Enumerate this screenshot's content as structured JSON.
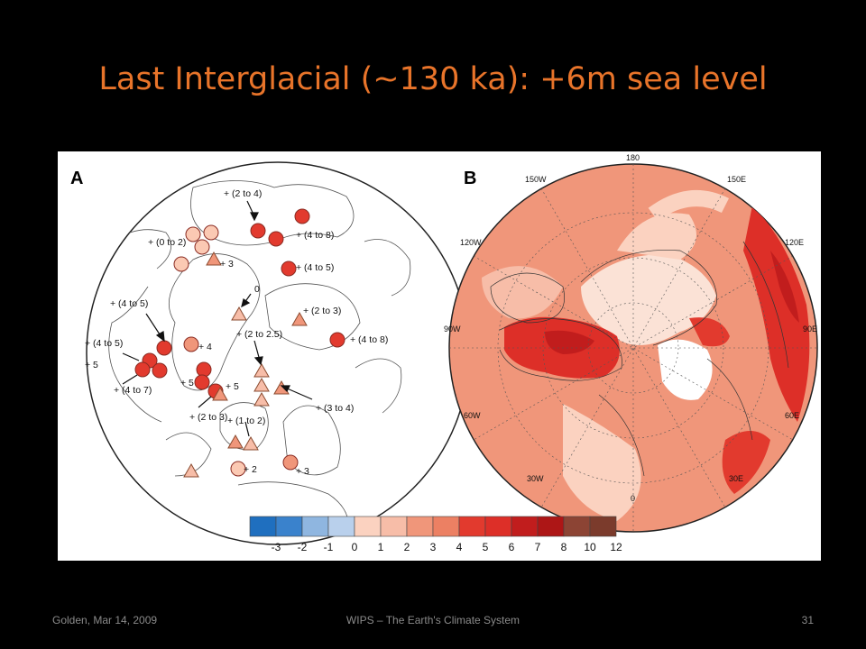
{
  "slide": {
    "title": "Last Interglacial (~130 ka): +6m sea level",
    "footer_left": "Golden,  Mar 14, 2009",
    "footer_center": "WIPS – The Earth's Climate System",
    "footer_right": "31"
  },
  "figure": {
    "panel_a": {
      "label": "A",
      "annotations": [
        "+ (2 to 4)",
        "+ (4 to 8)",
        "+ (0 to 2)",
        "+ 3",
        "+ (4 to 5)",
        "0",
        "+ (2 to 3)",
        "+ (4 to 5)",
        "+ (4 to 8)",
        "+ (2 to 2.5)",
        "+ 4",
        "+ (4 to 5)",
        "+ 5",
        "+ (4 to 7)",
        "+ 5",
        "+ 5",
        "+ (3 to 4)",
        "+ (2 to 3)",
        "+ (1 to 2)",
        "+ 2",
        "+ 3"
      ]
    },
    "panel_b": {
      "label": "B",
      "longitude_labels": [
        "180",
        "150W",
        "150E",
        "120W",
        "120E",
        "90W",
        "90E",
        "60W",
        "60E",
        "30W",
        "30E",
        "0"
      ]
    },
    "colorbar": {
      "labels": [
        "-3",
        "-2",
        "-1",
        "0",
        "1",
        "2",
        "3",
        "4",
        "5",
        "6",
        "7",
        "8",
        "10",
        "12"
      ],
      "colors": [
        "#1f6fbf",
        "#3a82cc",
        "#8fb6e0",
        "#b9d0ec",
        "#fbd2c0",
        "#f7bda8",
        "#f0967a",
        "#ec8063",
        "#e23a2e",
        "#dd2f28",
        "#c11d1d",
        "#ad1616",
        "#8c4434",
        "#7b3b2c"
      ]
    }
  }
}
